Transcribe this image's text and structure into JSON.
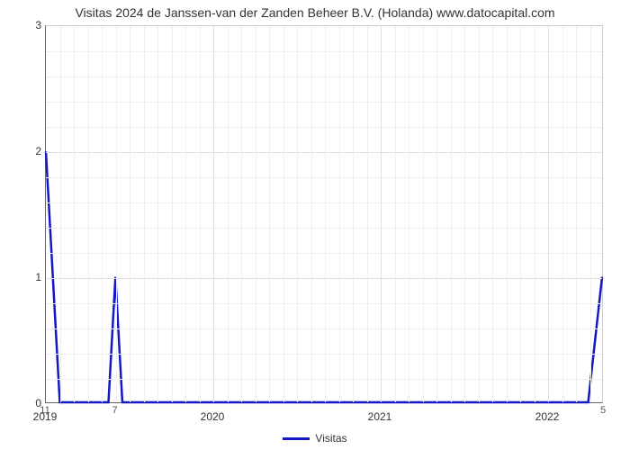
{
  "chart": {
    "type": "line",
    "title": "Visitas 2024 de Janssen-van der Zanden Beheer B.V. (Holanda) www.datocapital.com",
    "title_fontsize": 14,
    "title_color": "#333333",
    "background_color": "#ffffff",
    "plot_border_color": "#cccccc",
    "axis_color": "#666666",
    "grid_color": "#e0e0e0",
    "line_color": "#1218c4",
    "line_width": 2.5,
    "xlim": [
      0,
      40
    ],
    "ylim": [
      0,
      3
    ],
    "ytick_step": 1,
    "yticks": [
      0,
      1,
      2,
      3
    ],
    "ytick_minor_count": 4,
    "xticks_major": [
      {
        "pos": 0,
        "label": "2019"
      },
      {
        "pos": 12,
        "label": "2020"
      },
      {
        "pos": 24,
        "label": "2021"
      },
      {
        "pos": 36,
        "label": "2022"
      }
    ],
    "xtick_minor_step": 1,
    "below_axis_labels": [
      {
        "pos": 0,
        "text": "11"
      },
      {
        "pos": 5,
        "text": "7"
      },
      {
        "pos": 40,
        "text": "5"
      }
    ],
    "series": {
      "name": "Visitas",
      "points": [
        [
          0,
          2.0
        ],
        [
          1,
          0.0
        ],
        [
          4.5,
          0.0
        ],
        [
          5,
          1.0
        ],
        [
          5.5,
          0.0
        ],
        [
          39,
          0.0
        ],
        [
          40,
          1.0
        ]
      ]
    },
    "legend": {
      "label": "Visitas",
      "color": "#1218c4"
    },
    "label_fontsize": 12,
    "label_color": "#333333"
  }
}
